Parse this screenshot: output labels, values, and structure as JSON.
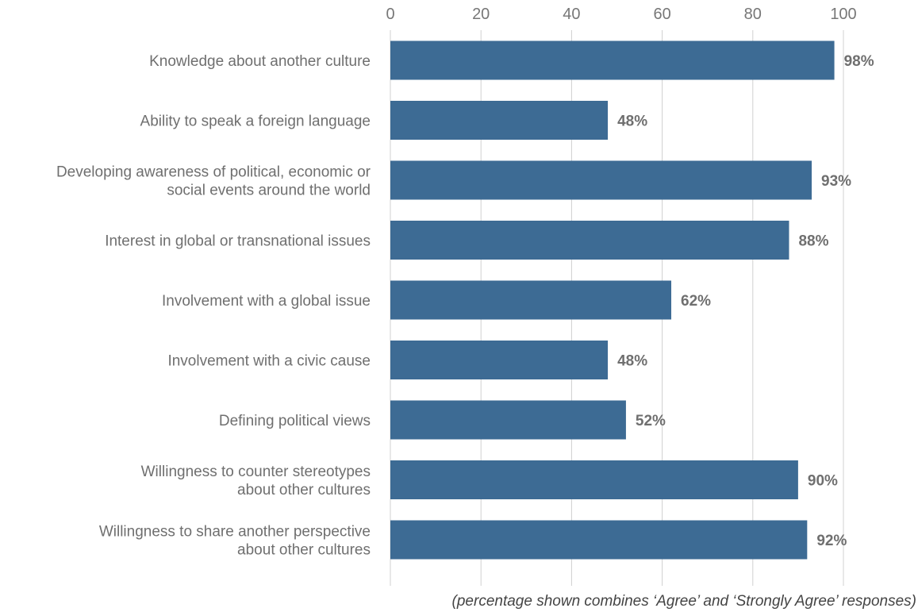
{
  "chart_data": {
    "type": "bar",
    "orientation": "horizontal",
    "categories": [
      [
        "Knowledge about another culture"
      ],
      [
        "Ability to speak a foreign language"
      ],
      [
        "Developing awareness of political, economic or",
        "social events around the world"
      ],
      [
        "Interest in global or transnational issues"
      ],
      [
        "Involvement with a global issue"
      ],
      [
        "Involvement with a civic cause"
      ],
      [
        "Defining political views"
      ],
      [
        "Willingness to counter stereotypes",
        "about other cultures"
      ],
      [
        "Willingness to share another perspective",
        "about other cultures"
      ]
    ],
    "values": [
      98,
      48,
      93,
      88,
      62,
      48,
      52,
      90,
      92
    ],
    "value_labels": [
      "98%",
      "48%",
      "93%",
      "88%",
      "62%",
      "48%",
      "52%",
      "90%",
      "92%"
    ],
    "xlim": [
      0,
      100
    ],
    "xticks": [
      0,
      20,
      40,
      60,
      80,
      100
    ],
    "xtick_labels": [
      "0",
      "20",
      "40",
      "60",
      "80",
      "100"
    ],
    "axis_position": "top",
    "grid": true,
    "bar_color": "#3d6b94",
    "note": "(percentage shown combines ‘Agree’ and ‘Strongly Agree’ responses)"
  }
}
